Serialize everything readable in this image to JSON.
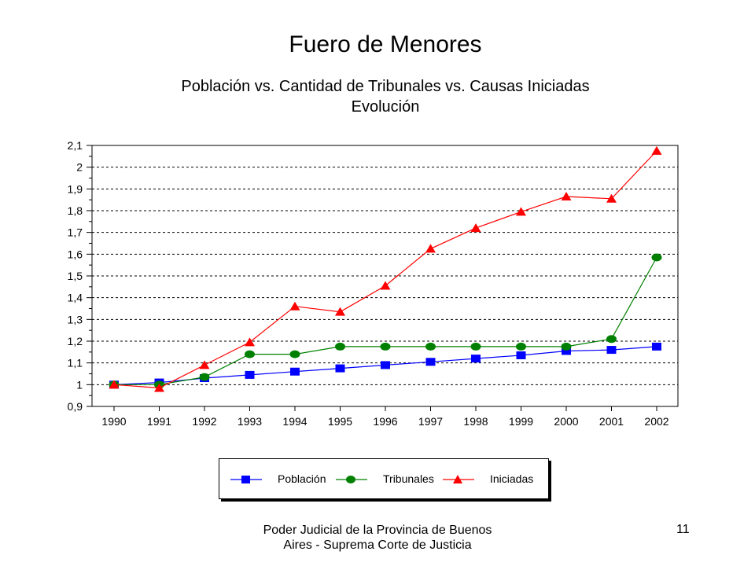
{
  "slide": {
    "title": "Fuero de Menores",
    "footer": "Poder Judicial de la Provincia de Buenos Aires - Suprema Corte de Justicia",
    "page_number": "11"
  },
  "chart_data": {
    "type": "line",
    "title": "Población vs. Cantidad de Tribunales vs. Causas Iniciadas",
    "subtitle": "Evolución",
    "xlabel": "",
    "ylabel": "",
    "categories": [
      "1990",
      "1991",
      "1992",
      "1993",
      "1994",
      "1995",
      "1996",
      "1997",
      "1998",
      "1999",
      "2000",
      "2001",
      "2002"
    ],
    "ylim": [
      0.9,
      2.1
    ],
    "yticks": [
      0.9,
      1.0,
      1.1,
      1.2,
      1.3,
      1.4,
      1.5,
      1.6,
      1.7,
      1.8,
      1.9,
      2.0,
      2.1
    ],
    "ytick_labels": [
      "0,9",
      "1",
      "1,1",
      "1,2",
      "1,3",
      "1,4",
      "1,5",
      "1,6",
      "1,7",
      "1,8",
      "1,9",
      "2",
      "2,1"
    ],
    "grid": true,
    "legend_position": "bottom",
    "series": [
      {
        "name": "Población",
        "color": "#0000ff",
        "marker": "square",
        "values": [
          1.0,
          1.01,
          1.03,
          1.045,
          1.06,
          1.075,
          1.09,
          1.105,
          1.12,
          1.135,
          1.155,
          1.16,
          1.175
        ]
      },
      {
        "name": "Tribunales",
        "color": "#008000",
        "marker": "circle",
        "values": [
          1.0,
          1.0,
          1.035,
          1.14,
          1.14,
          1.175,
          1.175,
          1.175,
          1.175,
          1.175,
          1.175,
          1.21,
          1.585
        ]
      },
      {
        "name": "Iniciadas",
        "color": "#ff0000",
        "marker": "triangle",
        "values": [
          1.0,
          0.985,
          1.09,
          1.195,
          1.36,
          1.335,
          1.455,
          1.625,
          1.72,
          1.795,
          1.865,
          1.855,
          2.075
        ]
      }
    ]
  }
}
